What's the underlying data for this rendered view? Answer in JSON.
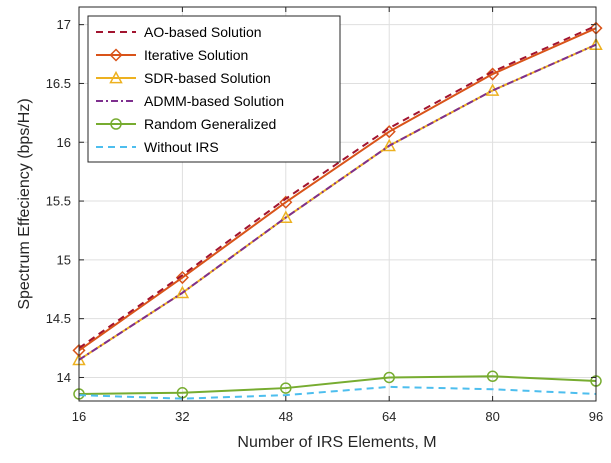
{
  "chart_data": {
    "type": "line",
    "xlabel": "Number of IRS Elements, M",
    "ylabel": "Spectrum Effeciency (bps/Hz)",
    "x": [
      16,
      32,
      48,
      64,
      80,
      96
    ],
    "xlim": [
      16,
      96
    ],
    "ylim": [
      13.8,
      17.15
    ],
    "xticks": [
      16,
      32,
      48,
      64,
      80,
      96
    ],
    "yticks": [
      14,
      14.5,
      15,
      15.5,
      16,
      16.5,
      17
    ],
    "ytick_labels": [
      "14",
      "14.5",
      "15",
      "15.5",
      "16",
      "16.5",
      "17"
    ],
    "grid": true,
    "legend_position": "top-left",
    "series": [
      {
        "name": "AO-based Solution",
        "values": [
          14.25,
          14.87,
          15.52,
          16.12,
          16.6,
          16.99
        ],
        "color": "#A2142F",
        "dash": "dashed",
        "marker": "none"
      },
      {
        "name": "Iterative Solution",
        "values": [
          14.23,
          14.85,
          15.49,
          16.09,
          16.58,
          16.97
        ],
        "color": "#D95319",
        "dash": "solid",
        "marker": "diamond"
      },
      {
        "name": "SDR-based Solution",
        "values": [
          14.15,
          14.72,
          15.36,
          15.97,
          16.44,
          16.83
        ],
        "color": "#EDB120",
        "dash": "solid",
        "marker": "triangle"
      },
      {
        "name": "ADMM-based Solution",
        "values": [
          14.15,
          14.72,
          15.36,
          15.97,
          16.44,
          16.83
        ],
        "color": "#7E2F8E",
        "dash": "dashdot",
        "marker": "none"
      },
      {
        "name": "Random Generalized",
        "values": [
          13.86,
          13.87,
          13.91,
          14.0,
          14.01,
          13.97
        ],
        "color": "#77AC30",
        "dash": "solid",
        "marker": "circle"
      },
      {
        "name": "Without IRS",
        "values": [
          13.85,
          13.82,
          13.85,
          13.92,
          13.9,
          13.86
        ],
        "color": "#4DBEEE",
        "dash": "dashed",
        "marker": "none"
      }
    ]
  }
}
